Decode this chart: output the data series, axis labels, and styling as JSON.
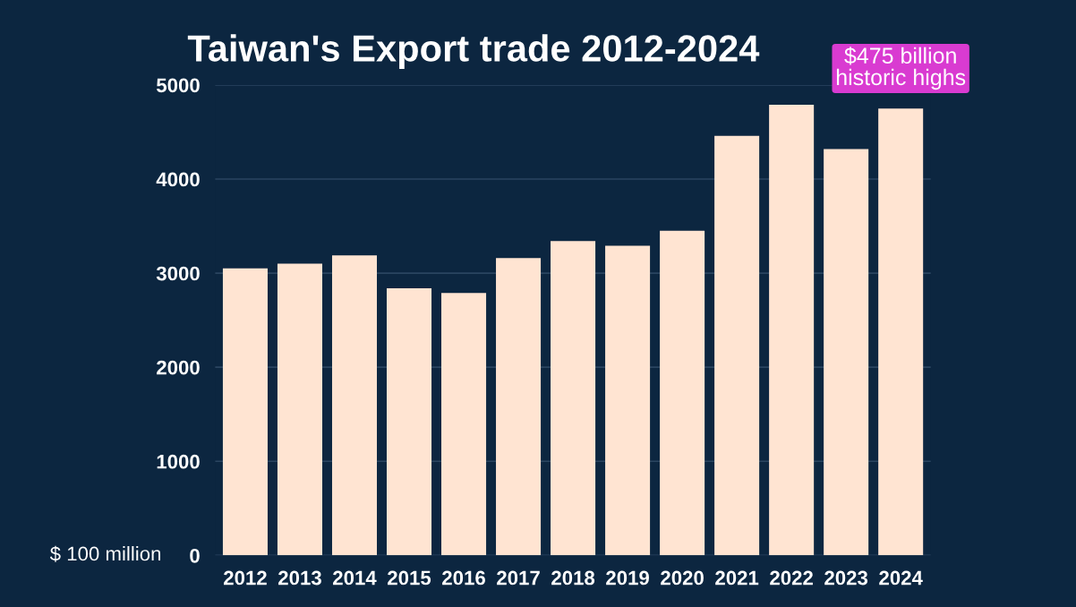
{
  "chart_data": {
    "type": "bar",
    "title": "Taiwan's Export trade 2012-2024",
    "ylabel": "$ 100 million",
    "categories": [
      "2012",
      "2013",
      "2014",
      "2015",
      "2016",
      "2017",
      "2018",
      "2019",
      "2020",
      "2021",
      "2022",
      "2023",
      "2024"
    ],
    "values": [
      3050,
      3100,
      3190,
      2840,
      2790,
      3160,
      3340,
      3290,
      3450,
      4460,
      4790,
      4320,
      4750
    ],
    "color": "#ffe4d2",
    "ylim": [
      0,
      5000
    ],
    "yticks": [
      0,
      1000,
      2000,
      3000,
      4000,
      5000
    ],
    "grid": "y",
    "annotations": [
      {
        "text": "$475 billion\nhistoric highs",
        "x": "2024",
        "y": 4750
      }
    ]
  }
}
